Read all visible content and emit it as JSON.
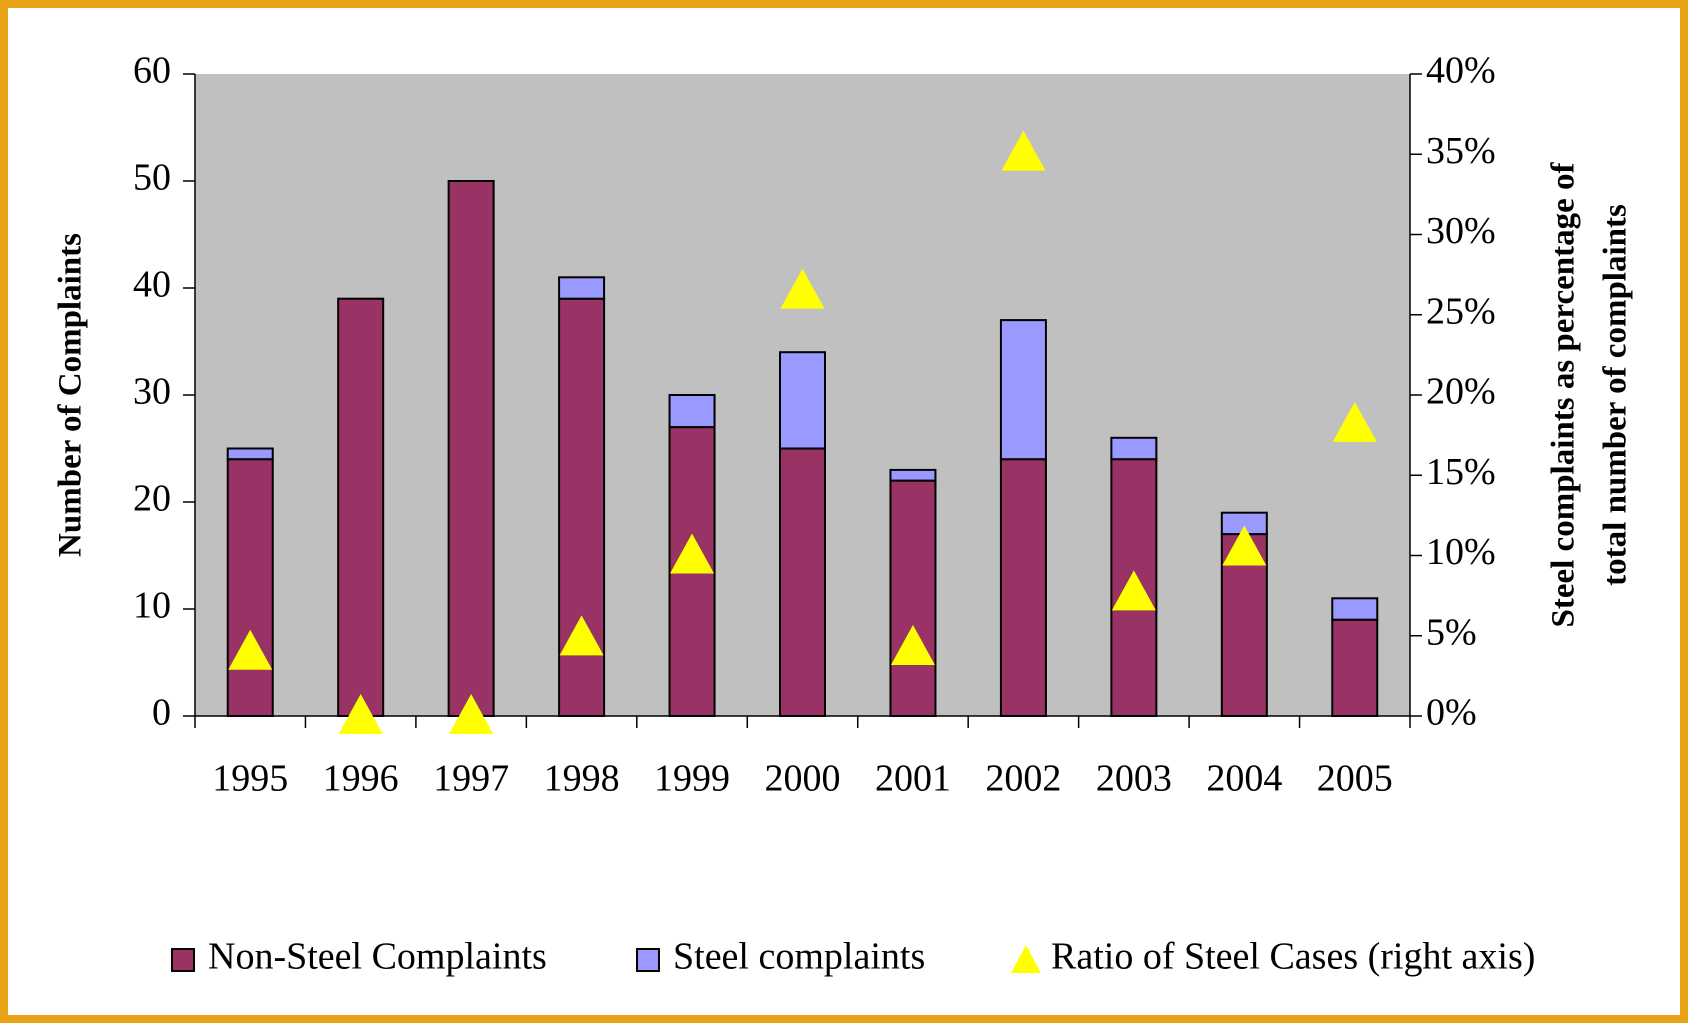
{
  "chart_data": {
    "type": "bar",
    "categories": [
      "1995",
      "1996",
      "1997",
      "1998",
      "1999",
      "2000",
      "2001",
      "2002",
      "2003",
      "2004",
      "2005"
    ],
    "series": [
      {
        "name": "Non-Steel Complaints",
        "color": "#993366",
        "values": [
          24,
          39,
          50,
          39,
          27,
          25,
          22,
          24,
          24,
          17,
          9
        ]
      },
      {
        "name": "Steel complaints",
        "color": "#9999ff",
        "values": [
          1,
          0,
          0,
          2,
          3,
          9,
          1,
          13,
          2,
          2,
          2
        ]
      },
      {
        "name": "Ratio of Steel Cases (right axis)",
        "color": "#ffff00",
        "type": "scatter",
        "axis": "y2",
        "values": [
          4,
          0,
          0,
          4.9,
          10,
          26.5,
          4.3,
          35.1,
          7.7,
          10.5,
          18.2
        ]
      }
    ],
    "stacked": true,
    "ylabel": "Number of Complaints",
    "y2label": [
      "Steel complaints as percentage of",
      "total number of complaints"
    ],
    "ylim": [
      0,
      60
    ],
    "yticks": [
      0,
      10,
      20,
      30,
      40,
      50,
      60
    ],
    "y2lim": [
      0,
      40
    ],
    "y2ticks": [
      {
        "value": 0,
        "label": "0%"
      },
      {
        "value": 5,
        "label": "5%"
      },
      {
        "value": 10,
        "label": "10%"
      },
      {
        "value": 15,
        "label": "15%"
      },
      {
        "value": 20,
        "label": "20%"
      },
      {
        "value": 25,
        "label": "25%"
      },
      {
        "value": 30,
        "label": "30%"
      },
      {
        "value": 35,
        "label": "35%"
      },
      {
        "value": 40,
        "label": "40%"
      }
    ],
    "legend": "bottom"
  }
}
